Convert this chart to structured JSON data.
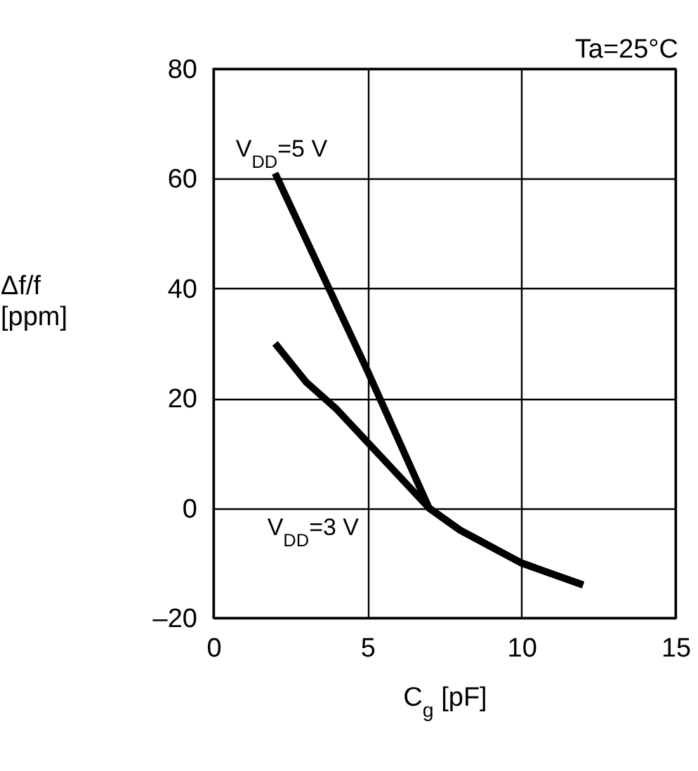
{
  "chart_data": {
    "type": "line",
    "xlabel": "C$_{g}$ [pF]",
    "ylabel": "Δf/f [ppm]",
    "annotations": [
      "Ta=25°C"
    ],
    "xlim": [
      0,
      15
    ],
    "xticks": [
      0,
      5,
      10,
      15
    ],
    "ylim": [
      -20,
      80
    ],
    "yticks": [
      {
        "value": -20,
        "label": "–20"
      },
      0,
      20,
      40,
      60,
      80
    ],
    "grid": true,
    "series": [
      {
        "name": "V$_{DD}$=5 V",
        "color": "#000000",
        "x": [
          2,
          3,
          4,
          5,
          7,
          8,
          10,
          12
        ],
        "values": [
          61,
          49,
          37,
          25,
          0,
          -4,
          -10,
          -14
        ]
      },
      {
        "name": "V$_{DD}$=3 V",
        "color": "#000000",
        "x": [
          2,
          3,
          4,
          7,
          8,
          10,
          12
        ],
        "values": [
          30,
          23,
          18,
          0,
          -4,
          -10,
          -14
        ]
      }
    ]
  }
}
